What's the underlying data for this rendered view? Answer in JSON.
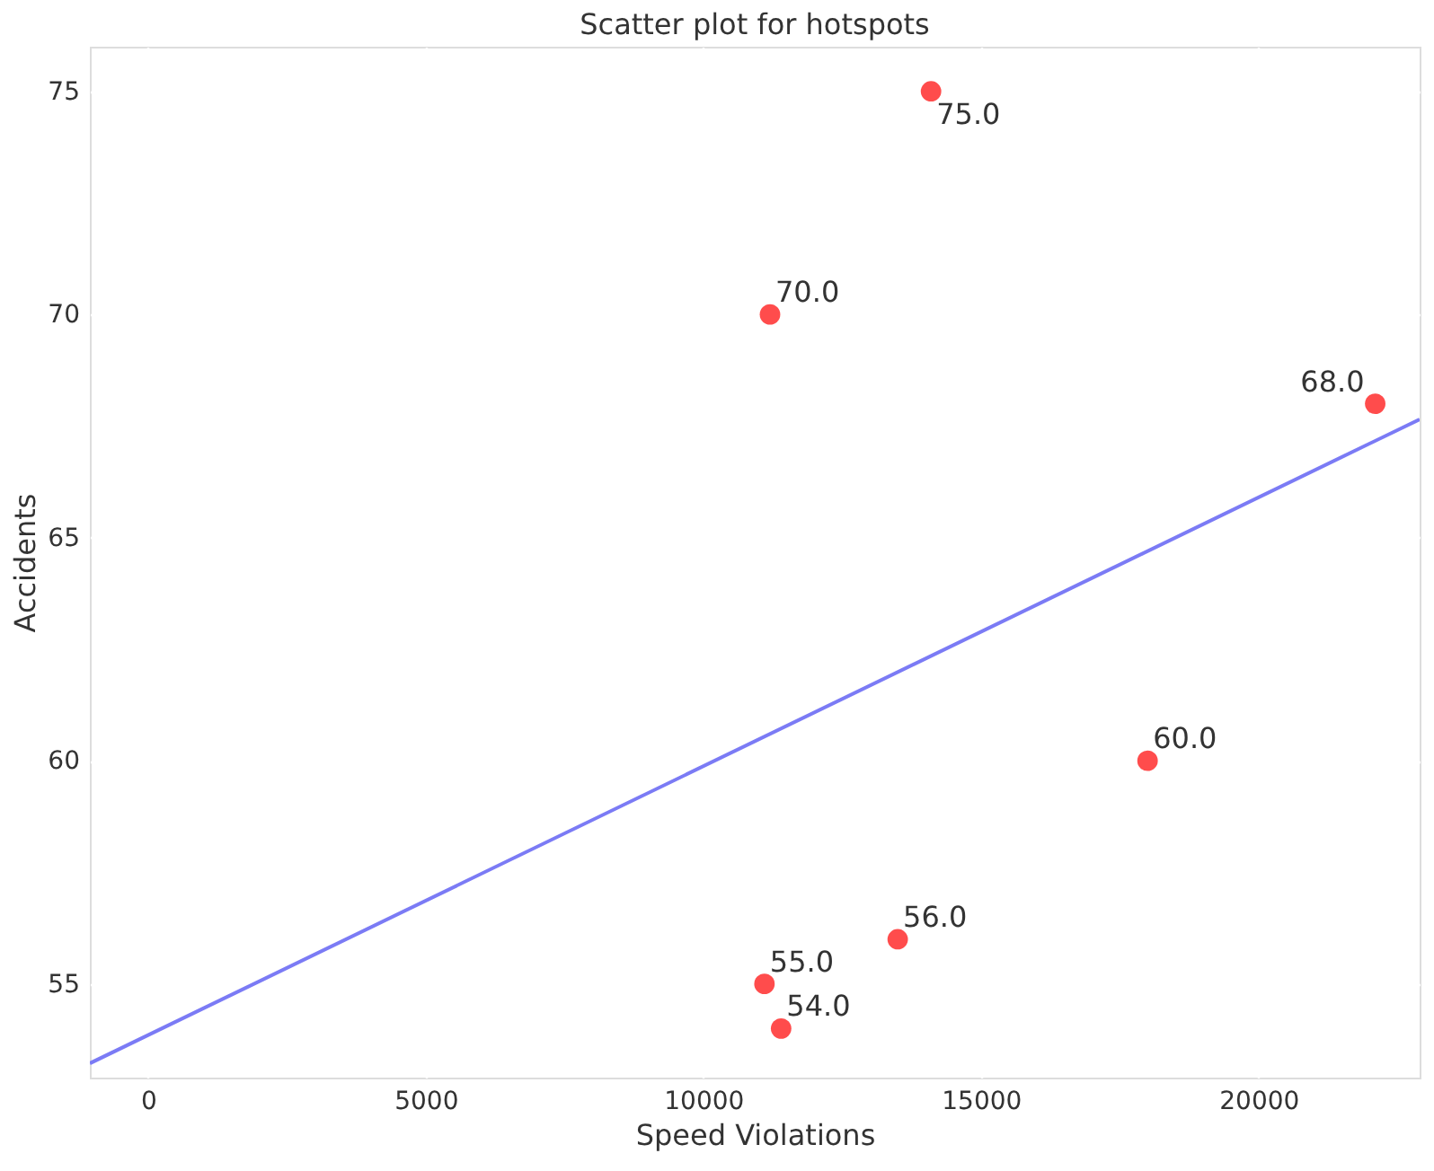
{
  "chart_data": {
    "type": "scatter",
    "title": "Scatter plot for hotspots",
    "xlabel": "Speed Violations",
    "ylabel": "Accidents",
    "xlim": [
      -1050,
      22900
    ],
    "ylim": [
      52.9,
      76
    ],
    "xticks": [
      0,
      5000,
      10000,
      15000,
      20000
    ],
    "yticks": [
      55,
      60,
      65,
      70,
      75
    ],
    "grid": true,
    "series": [
      {
        "marker": "circle",
        "color": "#ff4c4c",
        "x": [
          14100,
          11200,
          22100,
          18000,
          13500,
          11100,
          11400
        ],
        "values": [
          75,
          70,
          68,
          60,
          56,
          55,
          54
        ],
        "value_labels": [
          "75.0",
          "70.0",
          "68.0",
          "60.0",
          "56.0",
          "55.0",
          "54.0"
        ]
      },
      {
        "type": "line",
        "marker": "none",
        "color": "#7b7bf5",
        "x": [
          -1050,
          22900
        ],
        "values": [
          53.22,
          67.65
        ]
      }
    ]
  }
}
